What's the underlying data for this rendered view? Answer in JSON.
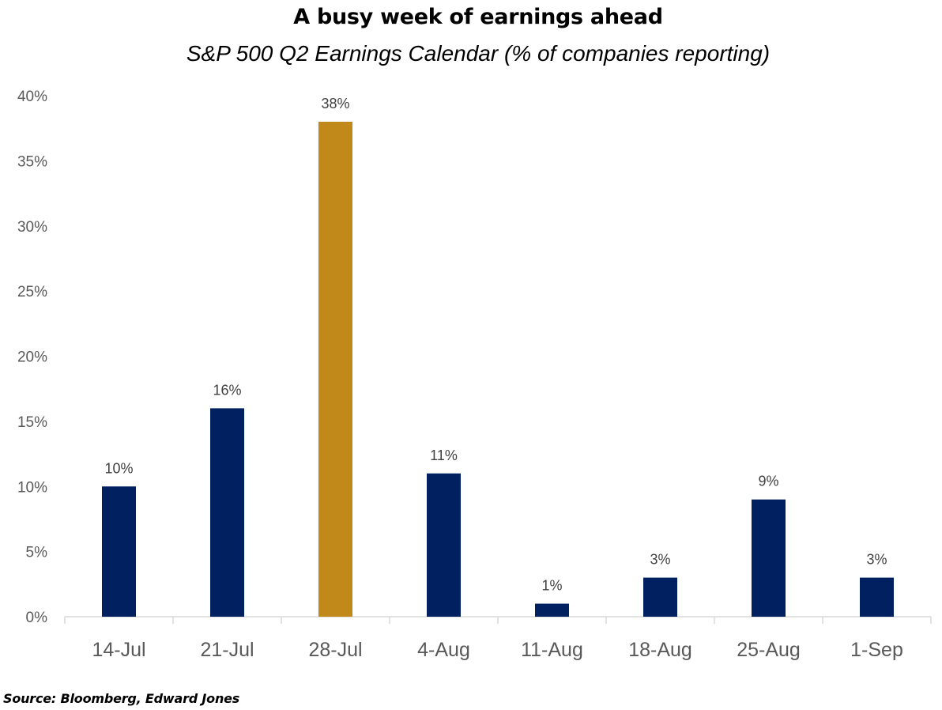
{
  "chart_data": {
    "type": "bar",
    "title": "A busy week of earnings ahead",
    "subtitle": "S&P 500 Q2 Earnings Calendar (% of companies reporting)",
    "categories": [
      "14-Jul",
      "21-Jul",
      "28-Jul",
      "4-Aug",
      "11-Aug",
      "18-Aug",
      "25-Aug",
      "1-Sep"
    ],
    "values": [
      10,
      16,
      38,
      11,
      1,
      3,
      9,
      3
    ],
    "data_labels": [
      "10%",
      "16%",
      "38%",
      "11%",
      "1%",
      "3%",
      "9%",
      "3%"
    ],
    "highlight_index": 2,
    "ylim": [
      0,
      40
    ],
    "yticks": [
      0,
      5,
      10,
      15,
      20,
      25,
      30,
      35,
      40
    ],
    "ytick_labels": [
      "0%",
      "5%",
      "10%",
      "15%",
      "20%",
      "25%",
      "30%",
      "35%",
      "40%"
    ],
    "xlabel": "",
    "ylabel": "",
    "grid": false,
    "colors": {
      "bar": "#002060",
      "highlight": "#C0891A",
      "axis": "#D9D9D9"
    }
  },
  "footer": {
    "source": "Source: Bloomberg, Edward Jones"
  }
}
